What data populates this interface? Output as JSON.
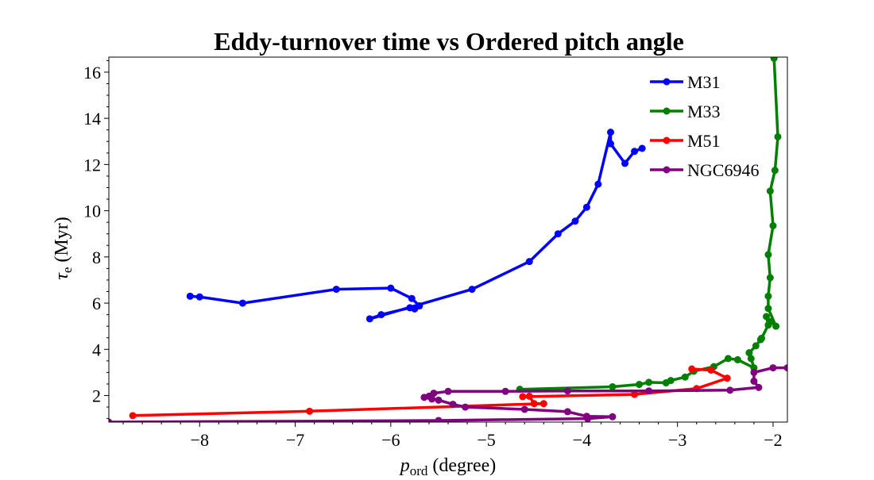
{
  "chart_data": {
    "type": "line",
    "title": "Eddy-turnover time vs Ordered pitch angle",
    "xlabel": {
      "symbol": "p",
      "subscript": "ord",
      "rest": " (degree)"
    },
    "ylabel": {
      "symbol": "τ",
      "subscript": "e",
      "rest": " (Myr)"
    },
    "xlim": [
      -8.95,
      -1.85
    ],
    "ylim": [
      0.85,
      16.65
    ],
    "xticks": [
      -8,
      -7,
      -6,
      -5,
      -4,
      -3,
      -2
    ],
    "xtick_labels": [
      "−8",
      "−7",
      "−6",
      "−5",
      "−4",
      "−3",
      "−2"
    ],
    "yticks": [
      2,
      4,
      6,
      8,
      10,
      12,
      14,
      16
    ],
    "ytick_labels": [
      "2",
      "4",
      "6",
      "8",
      "10",
      "12",
      "14",
      "16"
    ],
    "grid": false,
    "legend_position": "top-right",
    "series": [
      {
        "name": "M31",
        "color": "#0000ff",
        "points": [
          [
            -8.1,
            6.3
          ],
          [
            -8.0,
            6.27
          ],
          [
            -7.55,
            6.0
          ],
          [
            -6.57,
            6.6
          ],
          [
            -6.0,
            6.65
          ],
          [
            -5.78,
            6.2
          ],
          [
            -5.7,
            5.88
          ],
          [
            -5.75,
            5.75
          ],
          [
            -5.8,
            5.8
          ],
          [
            -6.1,
            5.5
          ],
          [
            -6.22,
            5.32
          ],
          [
            -5.15,
            6.6
          ],
          [
            -4.55,
            7.8
          ],
          [
            -4.25,
            9.0
          ],
          [
            -4.07,
            9.55
          ],
          [
            -3.95,
            10.15
          ],
          [
            -3.83,
            11.15
          ],
          [
            -3.7,
            13.4
          ],
          [
            -3.7,
            12.9
          ],
          [
            -3.55,
            12.05
          ],
          [
            -3.45,
            12.57
          ],
          [
            -3.37,
            12.7
          ]
        ]
      },
      {
        "name": "M33",
        "color": "#008000",
        "points": [
          [
            -4.65,
            2.27
          ],
          [
            -3.68,
            2.38
          ],
          [
            -3.4,
            2.48
          ],
          [
            -3.3,
            2.57
          ],
          [
            -3.12,
            2.55
          ],
          [
            -3.07,
            2.65
          ],
          [
            -2.92,
            2.8
          ],
          [
            -2.83,
            3.05
          ],
          [
            -2.62,
            3.25
          ],
          [
            -2.47,
            3.6
          ],
          [
            -2.37,
            3.55
          ],
          [
            -2.2,
            3.2
          ],
          [
            -2.23,
            3.6
          ],
          [
            -2.25,
            3.85
          ],
          [
            -2.18,
            4.15
          ],
          [
            -2.13,
            4.42
          ],
          [
            -2.12,
            4.48
          ],
          [
            -2.05,
            5.05
          ],
          [
            -2.07,
            5.42
          ],
          [
            -2.02,
            5.2
          ],
          [
            -1.97,
            5.0
          ],
          [
            -2.05,
            5.77
          ],
          [
            -2.05,
            6.3
          ],
          [
            -2.03,
            7.1
          ],
          [
            -2.05,
            8.1
          ],
          [
            -2.0,
            9.35
          ],
          [
            -2.03,
            10.85
          ],
          [
            -1.98,
            11.75
          ],
          [
            -1.95,
            13.2
          ],
          [
            -1.99,
            16.6
          ]
        ]
      },
      {
        "name": "M51",
        "color": "#ff0000",
        "points": [
          [
            -8.7,
            1.13
          ],
          [
            -6.85,
            1.32
          ],
          [
            -4.4,
            1.65
          ],
          [
            -4.5,
            1.65
          ],
          [
            -4.55,
            1.97
          ],
          [
            -4.62,
            1.95
          ],
          [
            -3.45,
            2.05
          ],
          [
            -2.8,
            2.3
          ],
          [
            -2.48,
            2.75
          ],
          [
            -2.65,
            3.1
          ],
          [
            -2.85,
            3.15
          ]
        ]
      },
      {
        "name": "NGC6946",
        "color": "#800080",
        "points": [
          [
            -8.95,
            0.85
          ],
          [
            -5.5,
            0.92
          ],
          [
            -3.94,
            1.0
          ],
          [
            -3.68,
            1.08
          ],
          [
            -3.95,
            1.1
          ],
          [
            -4.15,
            1.3
          ],
          [
            -4.6,
            1.4
          ],
          [
            -5.22,
            1.5
          ],
          [
            -5.35,
            1.62
          ],
          [
            -5.5,
            1.8
          ],
          [
            -5.57,
            1.85
          ],
          [
            -5.6,
            1.97
          ],
          [
            -5.65,
            1.92
          ],
          [
            -5.55,
            2.1
          ],
          [
            -5.4,
            2.18
          ],
          [
            -4.8,
            2.18
          ],
          [
            -4.15,
            2.2
          ],
          [
            -3.3,
            2.2
          ],
          [
            -2.45,
            2.23
          ],
          [
            -2.15,
            2.35
          ],
          [
            -2.2,
            2.62
          ],
          [
            -2.2,
            3.0
          ],
          [
            -2.0,
            3.2
          ],
          [
            -1.85,
            3.2
          ]
        ]
      }
    ]
  }
}
